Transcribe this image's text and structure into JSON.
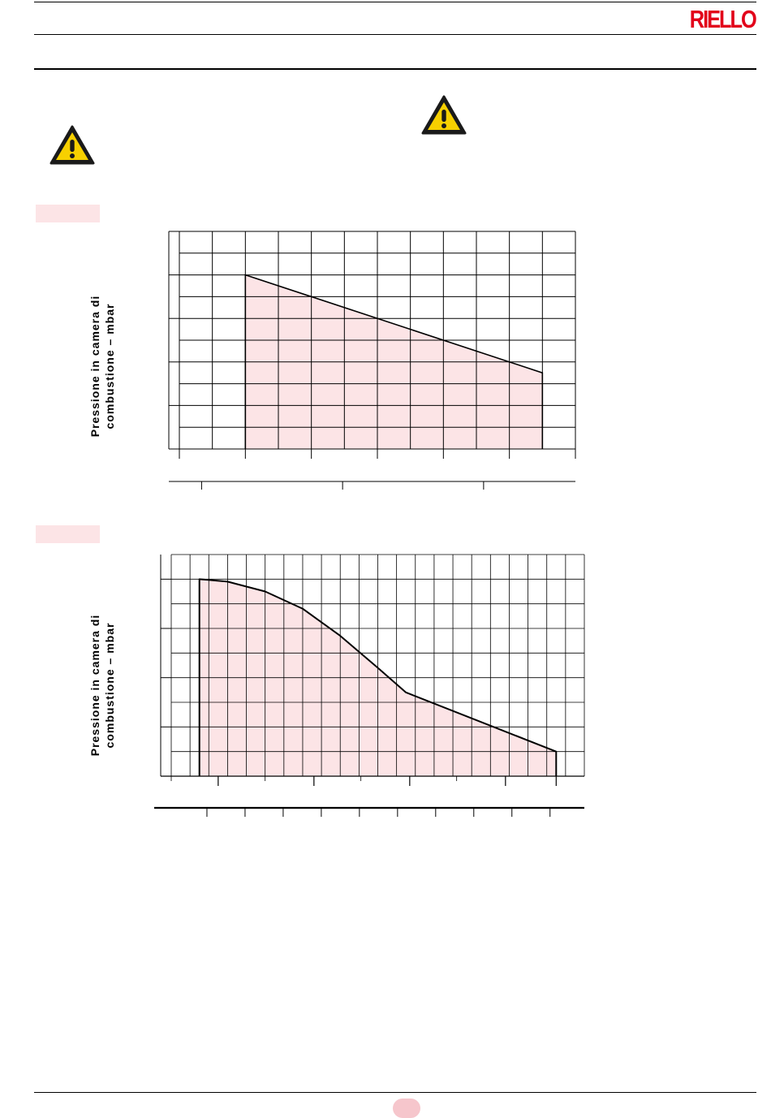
{
  "header": {
    "brand": "RIELLO",
    "brand_color": "#e2001a"
  },
  "warnings": [
    {
      "icon": "warning-triangle-icon"
    },
    {
      "icon": "warning-triangle-icon"
    }
  ],
  "colors": {
    "fill": "#fce4e6",
    "tag": "#fce4e6",
    "page_badge": "#f6c6cc",
    "grid": "#000000"
  },
  "chart_data": [
    {
      "type": "area",
      "ylabel_lines": [
        "Pressione in camera di",
        "combustione – mbar"
      ],
      "x": [
        2,
        2,
        11,
        11
      ],
      "y": [
        0,
        8,
        3.5,
        0
      ],
      "x_range": [
        0,
        12
      ],
      "y_range": [
        0,
        10
      ],
      "grid": true,
      "y_major_ticks": [
        0,
        2,
        4,
        6,
        8,
        10
      ],
      "x_major_ticks": [
        0,
        2,
        4,
        6,
        8,
        10,
        12
      ],
      "x2_ticks": [
        1,
        5.3,
        9.6
      ],
      "x2_range": [
        0,
        12.4
      ]
    },
    {
      "type": "area",
      "ylabel_lines": [
        "Pressione in camera di",
        "combustione – mbar"
      ],
      "x": [
        1.5,
        1.5,
        3,
        5,
        7,
        9,
        11,
        12.5,
        20.5,
        20.5
      ],
      "y": [
        0,
        8,
        7.9,
        7.5,
        6.8,
        5.7,
        4.4,
        3.4,
        1,
        0
      ],
      "x_range": [
        0,
        22
      ],
      "y_range": [
        0,
        9
      ],
      "grid": true,
      "y_major_ticks": [
        0,
        2,
        4,
        6,
        8
      ],
      "x_major_ticks": [
        2.5,
        7.6,
        12.7,
        17.8,
        20.5
      ],
      "x_minor_ticks": [
        0,
        5,
        10.1,
        15.2
      ],
      "x2_ticks": [
        1,
        2,
        3,
        4,
        5,
        6,
        7,
        8,
        9,
        10
      ],
      "x2_range": [
        0,
        10.9
      ]
    }
  ]
}
